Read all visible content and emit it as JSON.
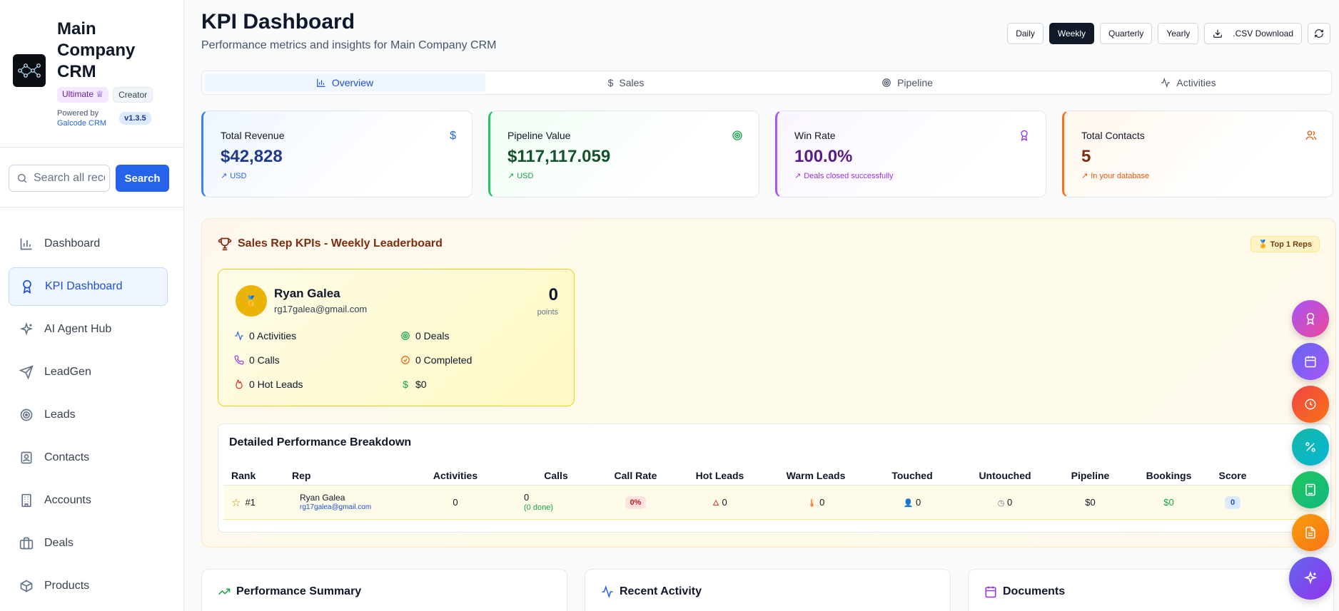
{
  "sidebar": {
    "brand_title": "Main Company CRM",
    "badge_ultimate": "Ultimate",
    "badge_creator": "Creator",
    "powered_by": "Powered by",
    "powered_link": "Galcode CRM",
    "version": "v1.3.5",
    "search_placeholder": "Search all records...",
    "search_button": "Search",
    "items": [
      {
        "label": "Dashboard",
        "icon": "bar-chart-icon"
      },
      {
        "label": "KPI Dashboard",
        "icon": "award-icon",
        "active": true
      },
      {
        "label": "AI Agent Hub",
        "icon": "sparkles-icon"
      },
      {
        "label": "LeadGen",
        "icon": "send-icon"
      },
      {
        "label": "Leads",
        "icon": "target-icon"
      },
      {
        "label": "Contacts",
        "icon": "contact-icon"
      },
      {
        "label": "Accounts",
        "icon": "building-icon"
      },
      {
        "label": "Deals",
        "icon": "briefcase-icon"
      },
      {
        "label": "Products",
        "icon": "package-icon"
      }
    ]
  },
  "header": {
    "title": "KPI Dashboard",
    "subtitle": "Performance metrics and insights for Main Company CRM",
    "periods": [
      "Daily",
      "Weekly",
      "Quarterly",
      "Yearly"
    ],
    "active_period": "Weekly",
    "csv_label": ".CSV Download"
  },
  "tabs": [
    {
      "label": "Overview",
      "icon": "bar-chart-icon",
      "active": true
    },
    {
      "label": "Sales",
      "icon": "dollar-icon"
    },
    {
      "label": "Pipeline",
      "icon": "target-icon"
    },
    {
      "label": "Activities",
      "icon": "activity-icon"
    }
  ],
  "stat_cards": [
    {
      "title": "Total Revenue",
      "value": "$42,828",
      "sub": "USD",
      "icon": "dollar-icon",
      "color": "#2563eb"
    },
    {
      "title": "Pipeline Value",
      "value": "$117,117.059",
      "sub": "USD",
      "icon": "target-icon",
      "color": "#16a34a"
    },
    {
      "title": "Win Rate",
      "value": "100.0%",
      "sub": "Deals closed successfully",
      "icon": "award-icon",
      "color": "#9333ea"
    },
    {
      "title": "Total Contacts",
      "value": "5",
      "sub": "In your database",
      "icon": "users-icon",
      "color": "#ea580c"
    }
  ],
  "leaderboard": {
    "title": "Sales Rep KPIs - Weekly Leaderboard",
    "top_badge": "🏅 Top 1 Reps",
    "rep": {
      "name": "Ryan Galea",
      "email": "rg17galea@gmail.com",
      "medal": "🥇",
      "points": "0",
      "points_label": "points",
      "stats": [
        {
          "label": "0 Activities",
          "icon": "activity-icon",
          "color": "#2563eb"
        },
        {
          "label": "0 Deals",
          "icon": "target-icon",
          "color": "#16a34a"
        },
        {
          "label": "0 Calls",
          "icon": "phone-icon",
          "color": "#9333ea"
        },
        {
          "label": "0 Completed",
          "icon": "check-circle-icon",
          "color": "#ea580c"
        },
        {
          "label": "0 Hot Leads",
          "icon": "flame-icon",
          "color": "#dc2626"
        },
        {
          "label": "$0",
          "icon": "dollar-icon",
          "color": "#16a34a"
        }
      ]
    },
    "breakdown_title": "Detailed Performance Breakdown",
    "columns": [
      "Rank",
      "Rep",
      "Activities",
      "Calls",
      "Call Rate",
      "Hot Leads",
      "Warm Leads",
      "Touched",
      "Untouched",
      "Pipeline",
      "Bookings",
      "Score"
    ],
    "row": {
      "rank": "#1",
      "rep_name": "Ryan Galea",
      "rep_email": "rg17galea@gmail.com",
      "activities": "0",
      "calls": "0",
      "calls_done": "(0 done)",
      "call_rate": "0%",
      "hot_leads": "0",
      "warm_leads": "0",
      "touched": "0",
      "untouched": "0",
      "pipeline": "$0",
      "bookings": "$0",
      "score": "0"
    }
  },
  "bottom_cards": [
    {
      "title": "Performance Summary",
      "icon": "trending-up-icon",
      "color": "#16a34a"
    },
    {
      "title": "Recent Activity",
      "icon": "activity-icon",
      "color": "#2563eb"
    },
    {
      "title": "Documents",
      "icon": "calendar-icon",
      "color": "#9333ea"
    }
  ],
  "fabs": [
    "award-icon",
    "calendar-icon",
    "clock-icon",
    "percent-icon",
    "calculator-icon",
    "document-icon",
    "sparkles-icon"
  ]
}
